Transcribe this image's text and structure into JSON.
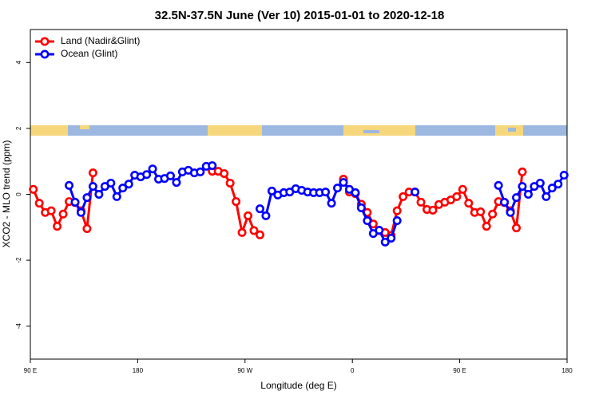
{
  "chart_data": {
    "type": "line",
    "title": "32.5N-37.5N June (Ver 10)   2015-01-01 to 2020-12-18",
    "x_label": "Longitude (deg E)",
    "y_label": "XCO2 - MLO trend (ppm)",
    "xlim": [
      90,
      540
    ],
    "xticks": [
      {
        "value": 90,
        "label": "90 E"
      },
      180,
      {
        "value": 270,
        "label": "90 W"
      },
      {
        "value": 360,
        "label": "0"
      },
      {
        "value": 450,
        "label": "90 E"
      },
      {
        "value": 540,
        "label": "180"
      }
    ],
    "ylim": [
      -5,
      5
    ],
    "yticks": [
      -4,
      -2,
      0,
      2,
      4
    ],
    "legend": "top-left",
    "x": [
      92.5,
      97.5,
      102.5,
      107.5,
      112.5,
      117.5,
      122.5,
      127.5,
      132.5,
      137.5,
      142.5,
      147.5,
      152.5,
      157.5,
      162.5,
      167.5,
      172.5,
      177.5,
      182.5,
      187.5,
      192.5,
      197.5,
      202.5,
      207.5,
      212.5,
      217.5,
      222.5,
      227.5,
      232.5,
      237.5,
      242.5,
      247.5,
      252.5,
      257.5,
      262.5,
      267.5,
      272.5,
      277.5,
      282.5,
      287.5,
      292.5,
      297.5,
      302.5,
      307.5,
      312.5,
      317.5,
      322.5,
      327.5,
      332.5,
      337.5,
      342.5,
      347.5,
      352.5,
      357.5,
      362.5,
      367.5,
      372.5,
      377.5,
      382.5,
      387.5,
      392.5,
      397.5,
      402.5,
      407.5,
      412.5,
      417.5,
      422.5,
      427.5,
      432.5,
      437.5,
      442.5,
      447.5,
      452.5,
      457.5,
      462.5,
      467.5,
      472.5,
      477.5,
      482.5,
      487.5,
      492.5,
      497.5,
      502.5,
      507.5,
      512.5,
      517.5,
      522.5,
      527.5,
      532.5,
      537.5
    ],
    "series": [
      {
        "name": "Land (Nadir&Glint)",
        "color": "#ff0000",
        "values": [
          0.15,
          -0.27,
          -0.55,
          -0.5,
          -0.97,
          -0.6,
          -0.22,
          -0.25,
          -0.5,
          -1.04,
          0.65,
          null,
          null,
          null,
          null,
          null,
          null,
          null,
          null,
          null,
          null,
          null,
          null,
          null,
          null,
          null,
          null,
          null,
          null,
          null,
          0.7,
          0.7,
          0.63,
          0.34,
          -0.22,
          -1.16,
          -0.65,
          -1.1,
          -1.23,
          null,
          null,
          null,
          null,
          null,
          null,
          null,
          null,
          null,
          null,
          null,
          null,
          null,
          0.46,
          0.07,
          0.02,
          -0.3,
          -0.55,
          -0.9,
          -1.1,
          -1.16,
          -1.25,
          -0.5,
          -0.07,
          0.07,
          0.07,
          -0.24,
          -0.46,
          -0.48,
          -0.31,
          -0.24,
          -0.17,
          -0.07,
          0.15,
          -0.27,
          -0.55,
          -0.53,
          -0.97,
          -0.6,
          -0.22,
          -0.25,
          -0.5,
          -1.02,
          0.68,
          null,
          null,
          null,
          null,
          null,
          null,
          null
        ]
      },
      {
        "name": "Ocean (Glint)",
        "color": "#0000ff",
        "values": [
          null,
          null,
          null,
          null,
          null,
          null,
          0.27,
          -0.24,
          -0.55,
          -0.1,
          0.24,
          0,
          0.24,
          0.34,
          -0.07,
          0.19,
          0.31,
          0.58,
          0.53,
          0.6,
          0.77,
          0.46,
          0.48,
          0.56,
          0.36,
          0.68,
          0.73,
          0.65,
          0.68,
          0.85,
          0.87,
          null,
          null,
          null,
          null,
          null,
          null,
          null,
          -0.44,
          -0.65,
          0.1,
          -0.02,
          0.05,
          0.07,
          0.17,
          0.12,
          0.07,
          0.05,
          0.05,
          0.07,
          -0.27,
          0.19,
          0.36,
          0.15,
          0.05,
          -0.41,
          -0.8,
          -1.19,
          -1.09,
          -1.45,
          -1.33,
          -0.8,
          null,
          null,
          0.07,
          null,
          null,
          null,
          null,
          null,
          null,
          null,
          null,
          null,
          null,
          null,
          null,
          null,
          0.27,
          -0.24,
          -0.55,
          -0.1,
          0.24,
          0,
          0.24,
          0.34,
          -0.07,
          0.19,
          0.31,
          0.58
        ]
      }
    ]
  }
}
